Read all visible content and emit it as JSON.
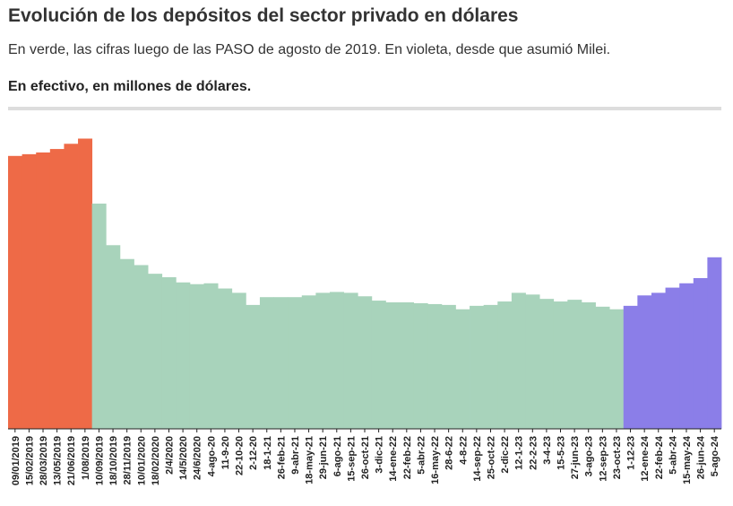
{
  "header": {
    "title": "Evolución de los depósitos del sector privado en dólares",
    "subtitle": "En verde, las cifras luego de las PASO de agosto de 2019. En violeta, desde que asumió Milei.",
    "unit": "En efectivo, en millones de dólares."
  },
  "colors": {
    "pre_paso": "#ee6a47",
    "post_paso": "#a8d3bb",
    "milei": "#8b7ee8",
    "axis": "#222222"
  },
  "chart_data": {
    "type": "bar",
    "title": "Evolución de los depósitos del sector privado en dólares",
    "xlabel": "",
    "ylabel": "",
    "grid": false,
    "legend": "none",
    "ylim": [
      0,
      35000
    ],
    "series": [
      {
        "segment": "pre_paso",
        "color": "#ee6a47",
        "x": [
          "09/01/2019",
          "15/02/2019",
          "28/03/2019",
          "13/05/2019",
          "21/06/2019",
          "1/08/2019"
        ],
        "values": [
          31500,
          31700,
          31900,
          32300,
          32900,
          33500
        ]
      },
      {
        "segment": "post_paso",
        "color": "#a8d3bb",
        "x": [
          "10/09/2019",
          "18/10/2019",
          "28/11/2019",
          "10/01/2020",
          "18/02/2020",
          "2/4/2020",
          "14/5/2020",
          "24/6/2020",
          "4-ago-20",
          "11-9-20",
          "22-10-20",
          "2-12-20",
          "18-1-21",
          "26-feb-21",
          "9-abr-21",
          "18-may-21",
          "29-jun-21",
          "6-ago-21",
          "15-sep-21",
          "26-oct-21",
          "3-dic-21",
          "14-ene-22",
          "22-feb-22",
          "5-abr-22",
          "16-may-22",
          "28-6-22",
          "4-8-22",
          "14-sep-22",
          "25-oct-22",
          "2-dic-22",
          "12-1-23",
          "22-2-23",
          "3-4-23",
          "15-5-23",
          "27-jun-23",
          "3-ago-23",
          "12-sep-23",
          "23-oct-23"
        ],
        "values": [
          26000,
          21200,
          19600,
          18900,
          17900,
          17500,
          16900,
          16700,
          16800,
          16200,
          15700,
          14300,
          15200,
          15200,
          15200,
          15400,
          15700,
          15800,
          15700,
          15300,
          14800,
          14600,
          14600,
          14500,
          14400,
          14300,
          13800,
          14200,
          14300,
          14700,
          15700,
          15500,
          15000,
          14700,
          14900,
          14600,
          14100,
          13800
        ]
      },
      {
        "segment": "milei",
        "color": "#8b7ee8",
        "x": [
          "1-12-23",
          "12-ene-24",
          "22-feb-24",
          "5-abr-24",
          "15-may-24",
          "26-jun-24",
          "5-ago-24"
        ],
        "values": [
          14200,
          15400,
          15700,
          16300,
          16800,
          17400,
          19800
        ]
      }
    ]
  }
}
